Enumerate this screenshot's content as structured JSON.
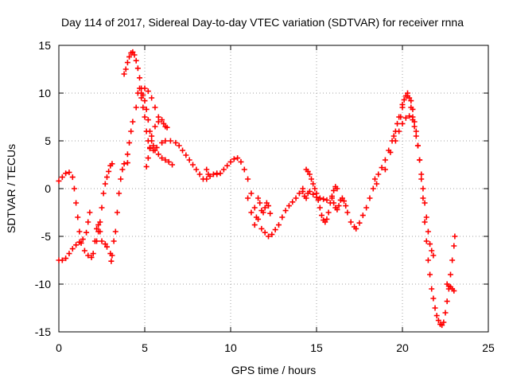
{
  "chart_data": {
    "type": "scatter",
    "title": "Day 114 of 2017, Sidereal Day-to-day VTEC variation (SDTVAR) for receiver rnna",
    "xlabel": "GPS time / hours",
    "ylabel": "SDTVAR / TECUs",
    "xlim": [
      0,
      25
    ],
    "ylim": [
      -15,
      15
    ],
    "xticks": [
      0,
      5,
      10,
      15,
      20,
      25
    ],
    "yticks": [
      -15,
      -10,
      -5,
      0,
      5,
      10,
      15
    ],
    "grid": true,
    "marker": "+",
    "series_color": "#ff0000",
    "series": [
      {
        "points": [
          [
            0.0,
            0.8
          ],
          [
            0.2,
            1.2
          ],
          [
            0.4,
            1.6
          ],
          [
            0.6,
            1.7
          ],
          [
            0.8,
            1.2
          ],
          [
            0.9,
            0.0
          ],
          [
            1.0,
            -1.5
          ],
          [
            1.1,
            -3.0
          ],
          [
            1.2,
            -4.5
          ],
          [
            1.3,
            -5.7
          ],
          [
            1.5,
            -6.5
          ],
          [
            1.7,
            -7.0
          ],
          [
            1.9,
            -7.2
          ],
          [
            2.0,
            -6.8
          ],
          [
            2.2,
            -5.5
          ],
          [
            2.3,
            -4.5
          ],
          [
            2.4,
            -3.5
          ],
          [
            2.5,
            -2.0
          ],
          [
            2.6,
            -0.5
          ],
          [
            2.7,
            0.5
          ],
          [
            2.8,
            1.2
          ],
          [
            2.9,
            1.8
          ],
          [
            3.0,
            2.4
          ],
          [
            3.1,
            2.6
          ],
          [
            0.0,
            -7.5
          ],
          [
            0.2,
            -7.5
          ],
          [
            0.4,
            -7.3
          ],
          [
            0.6,
            -6.8
          ],
          [
            0.8,
            -6.3
          ],
          [
            1.0,
            -5.9
          ],
          [
            1.2,
            -5.6
          ],
          [
            1.4,
            -5.3
          ],
          [
            1.6,
            -4.6
          ],
          [
            1.7,
            -3.5
          ],
          [
            1.8,
            -2.5
          ],
          [
            2.1,
            -5.5
          ],
          [
            2.2,
            -4.2
          ],
          [
            2.3,
            -3.8
          ],
          [
            2.4,
            -4.5
          ],
          [
            2.5,
            -5.5
          ],
          [
            2.7,
            -5.8
          ],
          [
            2.8,
            -6.1
          ],
          [
            3.0,
            -6.8
          ],
          [
            3.05,
            -7.6
          ],
          [
            3.1,
            -7.0
          ],
          [
            3.2,
            -5.5
          ],
          [
            3.3,
            -4.5
          ],
          [
            3.4,
            -2.5
          ],
          [
            3.5,
            -0.5
          ],
          [
            3.6,
            1.0
          ],
          [
            3.7,
            2.0
          ],
          [
            3.8,
            2.6
          ],
          [
            4.0,
            2.7
          ],
          [
            4.0,
            3.6
          ],
          [
            4.1,
            4.8
          ],
          [
            4.2,
            6.0
          ],
          [
            4.3,
            7.0
          ],
          [
            4.5,
            8.5
          ],
          [
            4.6,
            10.0
          ],
          [
            4.7,
            10.5
          ],
          [
            4.8,
            9.5
          ],
          [
            4.9,
            8.5
          ],
          [
            5.0,
            7.5
          ],
          [
            5.1,
            6.0
          ],
          [
            5.2,
            5.0
          ],
          [
            5.3,
            4.2
          ],
          [
            5.5,
            4.0
          ],
          [
            5.7,
            4.3
          ],
          [
            6.0,
            4.8
          ],
          [
            6.2,
            5.0
          ],
          [
            6.5,
            5.0
          ],
          [
            6.8,
            4.8
          ],
          [
            7.0,
            4.5
          ],
          [
            7.2,
            4.0
          ],
          [
            7.4,
            3.5
          ],
          [
            7.6,
            3.0
          ],
          [
            7.8,
            2.5
          ],
          [
            8.0,
            2.0
          ],
          [
            8.2,
            1.5
          ],
          [
            8.4,
            1.0
          ],
          [
            8.6,
            1.0
          ],
          [
            8.8,
            1.3
          ],
          [
            9.0,
            1.5
          ],
          [
            9.2,
            1.6
          ],
          [
            3.8,
            12.0
          ],
          [
            3.9,
            12.5
          ],
          [
            4.0,
            13.2
          ],
          [
            4.1,
            13.8
          ],
          [
            4.2,
            14.2
          ],
          [
            4.3,
            14.3
          ],
          [
            4.4,
            14.0
          ],
          [
            4.5,
            13.4
          ],
          [
            4.6,
            12.6
          ],
          [
            4.7,
            11.6
          ],
          [
            4.8,
            10.5
          ],
          [
            4.9,
            9.8
          ],
          [
            5.0,
            9.2
          ],
          [
            5.1,
            8.3
          ],
          [
            5.2,
            7.2
          ],
          [
            5.3,
            6.0
          ],
          [
            5.4,
            5.0
          ],
          [
            5.5,
            4.5
          ],
          [
            5.6,
            4.0
          ],
          [
            5.8,
            3.6
          ],
          [
            6.0,
            3.2
          ],
          [
            6.2,
            3.0
          ],
          [
            6.4,
            2.8
          ],
          [
            6.6,
            2.5
          ],
          [
            5.1,
            2.3
          ],
          [
            5.2,
            3.2
          ],
          [
            5.3,
            4.3
          ],
          [
            5.4,
            5.5
          ],
          [
            5.6,
            6.5
          ],
          [
            5.8,
            7.0
          ],
          [
            6.0,
            7.2
          ],
          [
            6.1,
            6.8
          ],
          [
            6.2,
            6.5
          ],
          [
            6.3,
            6.4
          ],
          [
            4.8,
            10.0
          ],
          [
            5.0,
            10.5
          ],
          [
            5.2,
            10.2
          ],
          [
            5.4,
            9.5
          ],
          [
            5.6,
            8.5
          ],
          [
            5.8,
            7.5
          ],
          [
            8.6,
            2.0
          ],
          [
            8.7,
            1.5
          ],
          [
            9.2,
            1.5
          ],
          [
            9.4,
            1.6
          ],
          [
            9.6,
            2.0
          ],
          [
            9.8,
            2.4
          ],
          [
            10.0,
            2.8
          ],
          [
            10.2,
            3.1
          ],
          [
            10.4,
            3.2
          ],
          [
            10.6,
            2.8
          ],
          [
            10.8,
            2.0
          ],
          [
            11.0,
            1.0
          ],
          [
            11.2,
            -0.5
          ],
          [
            11.4,
            -2.0
          ],
          [
            11.6,
            -3.2
          ],
          [
            11.8,
            -4.2
          ],
          [
            12.0,
            -4.6
          ],
          [
            12.2,
            -5.0
          ],
          [
            12.4,
            -4.8
          ],
          [
            12.6,
            -4.3
          ],
          [
            12.8,
            -3.8
          ],
          [
            13.0,
            -3.0
          ],
          [
            13.2,
            -2.3
          ],
          [
            13.4,
            -1.8
          ],
          [
            13.6,
            -1.4
          ],
          [
            13.8,
            -1.0
          ],
          [
            14.0,
            -0.5
          ],
          [
            14.2,
            0.0
          ],
          [
            11.0,
            -1.0
          ],
          [
            11.2,
            -2.5
          ],
          [
            11.4,
            -3.8
          ],
          [
            11.5,
            -3.0
          ],
          [
            11.6,
            -1.0
          ],
          [
            11.7,
            -1.5
          ],
          [
            11.8,
            -2.3
          ],
          [
            11.9,
            -2.5
          ],
          [
            12.0,
            -2.0
          ],
          [
            12.1,
            -1.5
          ],
          [
            12.2,
            -1.8
          ],
          [
            12.3,
            -2.6
          ],
          [
            14.2,
            -0.3
          ],
          [
            14.3,
            -0.8
          ],
          [
            14.4,
            -1.0
          ],
          [
            14.5,
            -0.5
          ],
          [
            14.6,
            -0.3
          ],
          [
            14.8,
            -0.6
          ],
          [
            15.0,
            -0.9
          ],
          [
            15.2,
            -1.0
          ],
          [
            15.4,
            -1.1
          ],
          [
            15.6,
            -1.2
          ],
          [
            14.4,
            2.0
          ],
          [
            14.5,
            1.8
          ],
          [
            14.6,
            1.5
          ],
          [
            14.7,
            1.0
          ],
          [
            14.8,
            0.5
          ],
          [
            14.9,
            0.0
          ],
          [
            15.0,
            -0.5
          ],
          [
            15.1,
            -1.2
          ],
          [
            15.2,
            -2.0
          ],
          [
            15.3,
            -2.8
          ],
          [
            15.4,
            -3.3
          ],
          [
            15.5,
            -3.5
          ],
          [
            15.6,
            -3.2
          ],
          [
            15.7,
            -2.5
          ],
          [
            15.8,
            -1.5
          ],
          [
            15.9,
            -0.8
          ],
          [
            16.0,
            -0.2
          ],
          [
            16.1,
            0.2
          ],
          [
            16.2,
            0.0
          ],
          [
            15.9,
            -1.0
          ],
          [
            16.0,
            -1.5
          ],
          [
            16.1,
            -2.0
          ],
          [
            16.2,
            -2.2
          ],
          [
            16.3,
            -1.8
          ],
          [
            16.4,
            -1.2
          ],
          [
            16.5,
            -1.0
          ],
          [
            16.6,
            -1.3
          ],
          [
            16.7,
            -1.8
          ],
          [
            16.8,
            -2.5
          ],
          [
            17.0,
            -3.5
          ],
          [
            17.2,
            -4.0
          ],
          [
            17.3,
            -4.2
          ],
          [
            17.5,
            -3.6
          ],
          [
            17.7,
            -2.8
          ],
          [
            17.9,
            -2.0
          ],
          [
            18.1,
            -1.0
          ],
          [
            18.3,
            0.0
          ],
          [
            18.5,
            0.5
          ],
          [
            18.4,
            1.0
          ],
          [
            18.6,
            1.5
          ],
          [
            18.8,
            2.2
          ],
          [
            19.0,
            3.0
          ],
          [
            19.2,
            4.0
          ],
          [
            19.4,
            5.0
          ],
          [
            19.6,
            6.0
          ],
          [
            19.8,
            7.5
          ],
          [
            20.0,
            8.8
          ],
          [
            20.2,
            9.7
          ],
          [
            20.3,
            10.0
          ],
          [
            20.4,
            9.5
          ],
          [
            20.5,
            8.5
          ],
          [
            20.6,
            7.5
          ],
          [
            20.7,
            6.5
          ],
          [
            20.8,
            5.5
          ],
          [
            20.9,
            4.5
          ],
          [
            21.0,
            3.0
          ],
          [
            21.1,
            1.5
          ],
          [
            21.2,
            0.0
          ],
          [
            21.3,
            -1.5
          ],
          [
            21.4,
            -3.0
          ],
          [
            21.5,
            -4.5
          ],
          [
            21.6,
            -5.8
          ],
          [
            21.7,
            -6.5
          ],
          [
            21.8,
            -7.0
          ],
          [
            19.5,
            5.5
          ],
          [
            19.7,
            6.8
          ],
          [
            19.9,
            7.5
          ],
          [
            20.0,
            8.5
          ],
          [
            20.1,
            9.3
          ],
          [
            20.3,
            9.7
          ],
          [
            20.5,
            9.2
          ],
          [
            20.6,
            8.3
          ],
          [
            20.7,
            7.0
          ],
          [
            20.8,
            6.0
          ],
          [
            20.9,
            4.5
          ],
          [
            21.0,
            3.0
          ],
          [
            21.1,
            1.0
          ],
          [
            21.2,
            -1.0
          ],
          [
            21.3,
            -3.5
          ],
          [
            21.4,
            -5.5
          ],
          [
            21.5,
            -7.5
          ],
          [
            21.6,
            -9.0
          ],
          [
            21.7,
            -10.5
          ],
          [
            21.8,
            -11.5
          ],
          [
            21.9,
            -12.5
          ],
          [
            22.0,
            -13.3
          ],
          [
            22.1,
            -13.8
          ],
          [
            22.2,
            -14.2
          ],
          [
            22.3,
            -14.3
          ],
          [
            22.4,
            -14.0
          ],
          [
            22.5,
            -13.0
          ],
          [
            22.6,
            -11.8
          ],
          [
            22.7,
            -10.5
          ],
          [
            22.8,
            -9.0
          ],
          [
            22.9,
            -7.5
          ],
          [
            23.0,
            -6.0
          ],
          [
            23.05,
            -5.0
          ],
          [
            19.0,
            2.0
          ],
          [
            19.3,
            3.8
          ],
          [
            19.6,
            5.0
          ],
          [
            19.8,
            6.0
          ],
          [
            20.0,
            6.8
          ],
          [
            20.2,
            7.4
          ],
          [
            20.4,
            7.6
          ],
          [
            20.6,
            7.2
          ],
          [
            22.6,
            -10.0
          ],
          [
            22.7,
            -10.2
          ],
          [
            22.8,
            -10.3
          ],
          [
            22.9,
            -10.5
          ],
          [
            23.0,
            -10.7
          ]
        ]
      }
    ]
  }
}
